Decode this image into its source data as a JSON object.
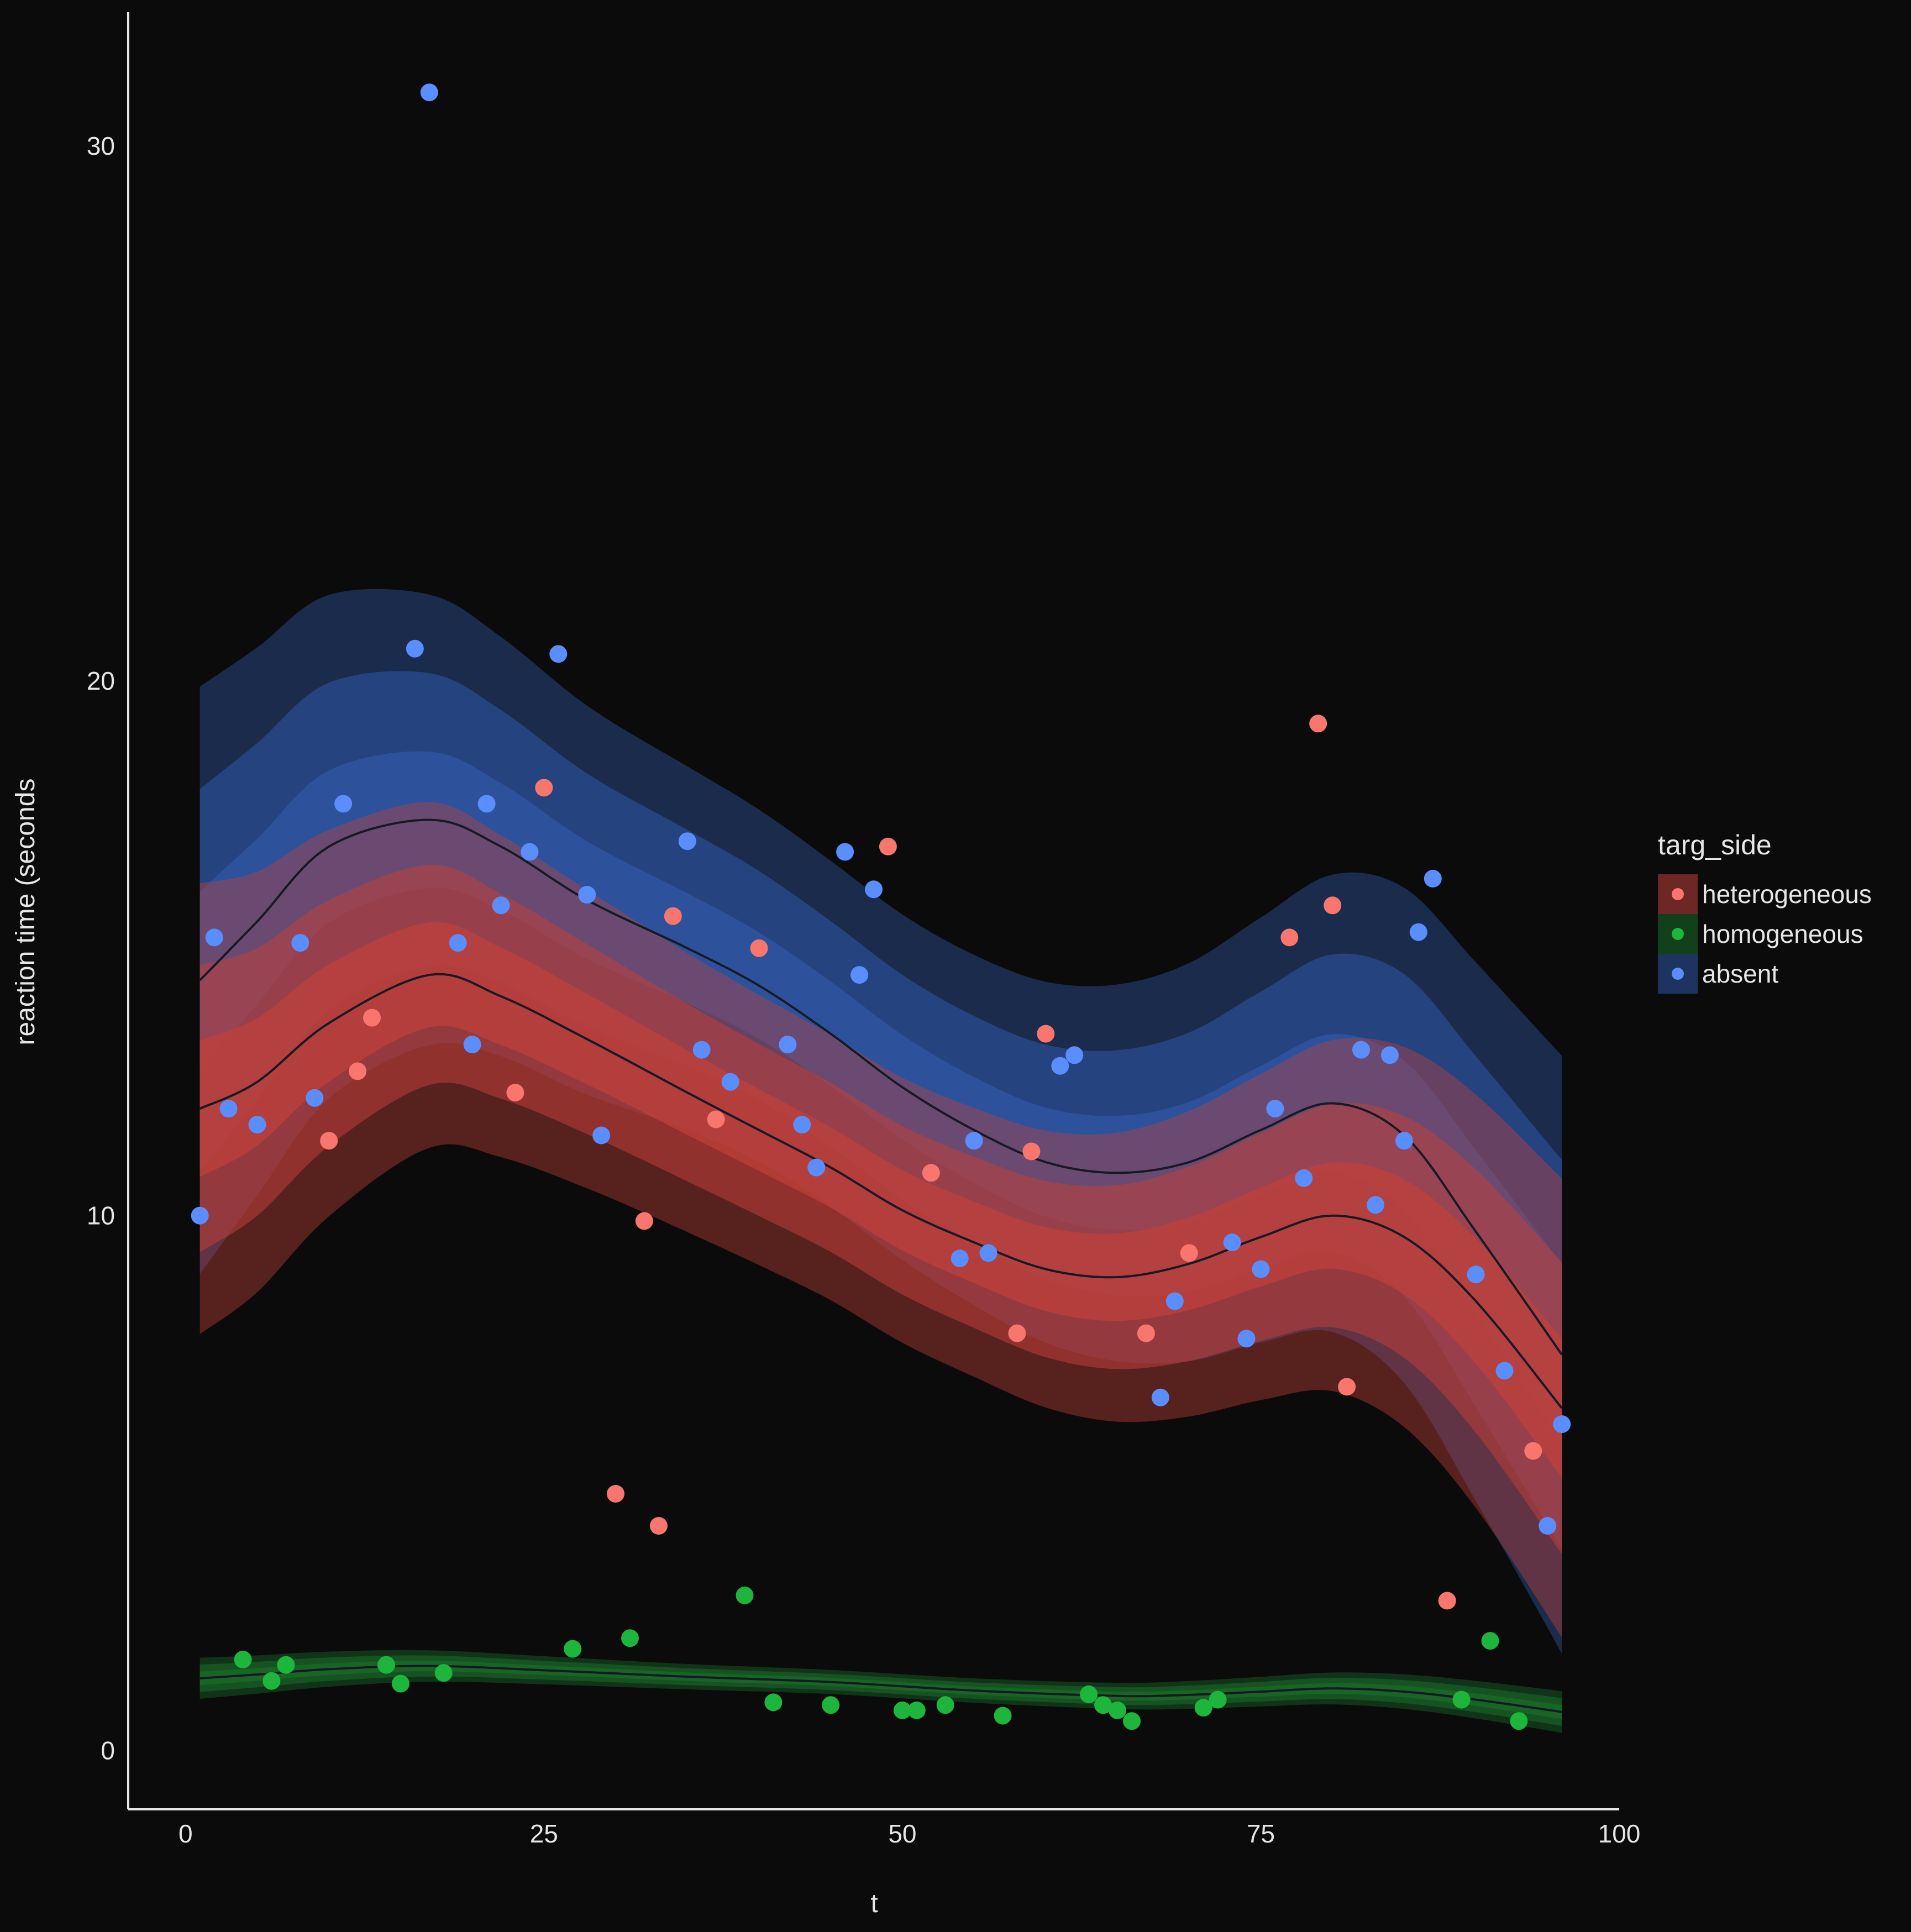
{
  "chart_data": {
    "type": "scatter",
    "subtype": "scatter with smoothed trend lines and stacked confidence bands",
    "xlabel": "t",
    "ylabel": "reaction time (seconds",
    "xlim": [
      -4,
      100
    ],
    "ylim": [
      -1.1,
      32.5
    ],
    "x_ticks": [
      0,
      25,
      50,
      75,
      100
    ],
    "y_ticks": [
      0,
      10,
      20,
      30
    ],
    "x_tick_labels": [
      "0",
      "25",
      "50",
      "75",
      "100"
    ],
    "y_tick_labels": [
      "0",
      "10",
      "20",
      "30"
    ],
    "grid": false,
    "legend": {
      "title": "targ_side",
      "placement": "right"
    },
    "series": [
      {
        "name": "heterogeneous",
        "color": "#f8766d",
        "band_color": "#c0403a",
        "points": [
          [
            10,
            11.4
          ],
          [
            12,
            12.7
          ],
          [
            13,
            13.7
          ],
          [
            23,
            12.3
          ],
          [
            25,
            18.0
          ],
          [
            30,
            4.8
          ],
          [
            32,
            9.9
          ],
          [
            33,
            4.2
          ],
          [
            34,
            15.6
          ],
          [
            37,
            11.8
          ],
          [
            40,
            15.0
          ],
          [
            49,
            16.9
          ],
          [
            52,
            10.8
          ],
          [
            58,
            7.8
          ],
          [
            59,
            11.2
          ],
          [
            60,
            13.4
          ],
          [
            67,
            7.8
          ],
          [
            70,
            9.3
          ],
          [
            77,
            15.2
          ],
          [
            79,
            19.2
          ],
          [
            80,
            15.8
          ],
          [
            81,
            6.8
          ],
          [
            88,
            2.8
          ],
          [
            94,
            5.6
          ]
        ],
        "trend": [
          [
            1,
            12.0
          ],
          [
            5,
            12.5
          ],
          [
            10,
            13.6
          ],
          [
            17,
            14.5
          ],
          [
            22,
            14.1
          ],
          [
            28,
            13.3
          ],
          [
            35,
            12.3
          ],
          [
            40,
            11.6
          ],
          [
            45,
            10.9
          ],
          [
            50,
            10.1
          ],
          [
            55,
            9.5
          ],
          [
            60,
            9.0
          ],
          [
            65,
            8.85
          ],
          [
            70,
            9.1
          ],
          [
            75,
            9.6
          ],
          [
            80,
            10.0
          ],
          [
            85,
            9.6
          ],
          [
            90,
            8.4
          ],
          [
            96,
            6.4
          ]
        ],
        "band_half_widths": [
          1.0,
          2.1,
          3.3
        ]
      },
      {
        "name": "homogeneous",
        "color": "#1db53b",
        "band_color": "#1a6d2a",
        "points": [
          [
            4,
            1.7
          ],
          [
            6,
            1.3
          ],
          [
            7,
            1.6
          ],
          [
            14,
            1.6
          ],
          [
            15,
            1.25
          ],
          [
            18,
            1.45
          ],
          [
            27,
            1.9
          ],
          [
            31,
            2.1
          ],
          [
            39,
            2.9
          ],
          [
            41,
            0.9
          ],
          [
            45,
            0.85
          ],
          [
            50,
            0.75
          ],
          [
            51,
            0.75
          ],
          [
            53,
            0.85
          ],
          [
            57,
            0.65
          ],
          [
            63,
            1.05
          ],
          [
            64,
            0.85
          ],
          [
            65,
            0.75
          ],
          [
            66,
            0.55
          ],
          [
            71,
            0.8
          ],
          [
            72,
            0.95
          ],
          [
            89,
            0.95
          ],
          [
            91,
            2.05
          ],
          [
            93,
            0.55
          ]
        ],
        "trend": [
          [
            1,
            1.35
          ],
          [
            5,
            1.42
          ],
          [
            10,
            1.52
          ],
          [
            17,
            1.58
          ],
          [
            25,
            1.5
          ],
          [
            35,
            1.38
          ],
          [
            45,
            1.28
          ],
          [
            55,
            1.12
          ],
          [
            65,
            1.02
          ],
          [
            70,
            1.04
          ],
          [
            75,
            1.1
          ],
          [
            80,
            1.16
          ],
          [
            85,
            1.1
          ],
          [
            90,
            0.95
          ],
          [
            96,
            0.72
          ]
        ],
        "band_half_widths": [
          0.1,
          0.2,
          0.3
        ]
      },
      {
        "name": "absent",
        "color": "#5a8dfd",
        "band_color": "#3058a8",
        "points": [
          [
            1,
            10.0
          ],
          [
            2,
            15.2
          ],
          [
            3,
            12.0
          ],
          [
            5,
            11.7
          ],
          [
            8,
            15.1
          ],
          [
            9,
            12.2
          ],
          [
            11,
            17.7
          ],
          [
            16,
            20.6
          ],
          [
            17,
            31.0
          ],
          [
            19,
            15.1
          ],
          [
            20,
            13.2
          ],
          [
            21,
            17.7
          ],
          [
            22,
            15.8
          ],
          [
            24,
            16.8
          ],
          [
            26,
            20.5
          ],
          [
            28,
            16.0
          ],
          [
            29,
            11.5
          ],
          [
            35,
            17.0
          ],
          [
            36,
            13.1
          ],
          [
            38,
            12.5
          ],
          [
            42,
            13.2
          ],
          [
            43,
            11.7
          ],
          [
            44,
            10.9
          ],
          [
            46,
            16.8
          ],
          [
            47,
            14.5
          ],
          [
            48,
            16.1
          ],
          [
            54,
            9.2
          ],
          [
            55,
            11.4
          ],
          [
            56,
            9.3
          ],
          [
            61,
            12.8
          ],
          [
            62,
            13.0
          ],
          [
            68,
            6.6
          ],
          [
            69,
            8.4
          ],
          [
            73,
            9.5
          ],
          [
            74,
            7.7
          ],
          [
            75,
            9.0
          ],
          [
            76,
            12.0
          ],
          [
            78,
            10.7
          ],
          [
            82,
            13.1
          ],
          [
            83,
            10.2
          ],
          [
            84,
            13.0
          ],
          [
            85,
            11.4
          ],
          [
            86,
            15.3
          ],
          [
            87,
            16.3
          ],
          [
            90,
            8.9
          ],
          [
            92,
            7.1
          ],
          [
            95,
            4.2
          ],
          [
            96,
            6.1
          ]
        ],
        "trend": [
          [
            1,
            14.4
          ],
          [
            5,
            15.5
          ],
          [
            10,
            16.9
          ],
          [
            17,
            17.4
          ],
          [
            22,
            16.9
          ],
          [
            28,
            15.9
          ],
          [
            35,
            15.0
          ],
          [
            40,
            14.3
          ],
          [
            45,
            13.4
          ],
          [
            50,
            12.4
          ],
          [
            55,
            11.6
          ],
          [
            60,
            11.0
          ],
          [
            65,
            10.8
          ],
          [
            70,
            11.0
          ],
          [
            75,
            11.6
          ],
          [
            80,
            12.1
          ],
          [
            85,
            11.5
          ],
          [
            90,
            9.7
          ],
          [
            96,
            7.4
          ]
        ],
        "band_half_widths": [
          1.3,
          2.8,
          4.3
        ]
      }
    ]
  }
}
